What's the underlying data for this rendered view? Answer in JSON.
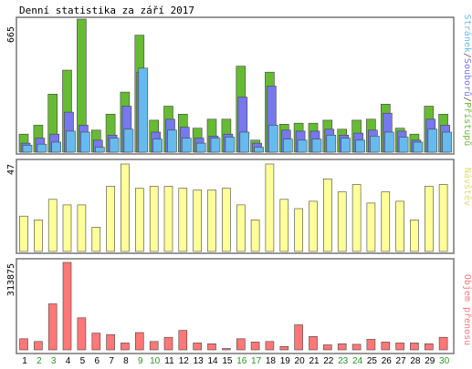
{
  "chart_data": [
    {
      "type": "bar",
      "title": "Denní statistika za září 2017",
      "ymax_label": "665",
      "ylim": [
        0,
        665
      ],
      "categories": [
        "1",
        "2",
        "3",
        "4",
        "5",
        "6",
        "7",
        "8",
        "9",
        "10",
        "11",
        "12",
        "13",
        "14",
        "15",
        "16",
        "17",
        "18",
        "19",
        "20",
        "21",
        "22",
        "23",
        "24",
        "25",
        "26",
        "27",
        "28",
        "29",
        "30"
      ],
      "weekend_days": [
        "2",
        "3",
        "9",
        "10",
        "16",
        "17",
        "23",
        "24",
        "30"
      ],
      "legend": [
        "Stránek",
        "Souborů",
        "Přístupů"
      ],
      "series": [
        {
          "name": "Přístupů",
          "color": "#66bb33",
          "values": [
            90,
            135,
            290,
            410,
            665,
            110,
            190,
            300,
            585,
            160,
            230,
            190,
            120,
            165,
            165,
            430,
            60,
            400,
            140,
            145,
            145,
            160,
            115,
            160,
            165,
            240,
            120,
            90,
            230,
            190
          ]
        },
        {
          "name": "Souborů",
          "color": "#7777ee",
          "values": [
            45,
            70,
            90,
            200,
            135,
            60,
            85,
            230,
            400,
            100,
            165,
            125,
            70,
            80,
            90,
            275,
            45,
            330,
            110,
            105,
            105,
            115,
            85,
            95,
            110,
            195,
            105,
            60,
            165,
            135
          ]
        },
        {
          "name": "Stránek",
          "color": "#66bbee",
          "values": [
            35,
            40,
            50,
            105,
            100,
            25,
            70,
            115,
            420,
            65,
            110,
            70,
            45,
            70,
            75,
            100,
            25,
            135,
            65,
            60,
            65,
            85,
            70,
            60,
            80,
            100,
            75,
            50,
            115,
            100
          ]
        }
      ]
    },
    {
      "type": "bar",
      "ymax_label": "47",
      "ylim": [
        0,
        47
      ],
      "legend": [
        "Návštěv"
      ],
      "series": [
        {
          "name": "Návštěv",
          "color": "#ffff99",
          "values": [
            19,
            17,
            28,
            25,
            25,
            13,
            35,
            47,
            34,
            35,
            35,
            34,
            33,
            33,
            34,
            25,
            17,
            47,
            28,
            23,
            27,
            39,
            32,
            36,
            26,
            32,
            27,
            17,
            35,
            36
          ]
        }
      ]
    },
    {
      "type": "bar",
      "ymax_label": "313875",
      "ylim": [
        0,
        313875
      ],
      "legend": [
        "Objem přenosu"
      ],
      "series": [
        {
          "name": "Objem přenosu",
          "color": "#ff7777",
          "values": [
            40000,
            30000,
            165000,
            313875,
            115000,
            60000,
            55000,
            25000,
            62000,
            30000,
            45000,
            70000,
            25000,
            22000,
            5000,
            40000,
            28000,
            30000,
            12000,
            90000,
            48000,
            18000,
            22000,
            20000,
            38000,
            28000,
            25000,
            25000,
            22000,
            45000
          ]
        }
      ]
    }
  ]
}
